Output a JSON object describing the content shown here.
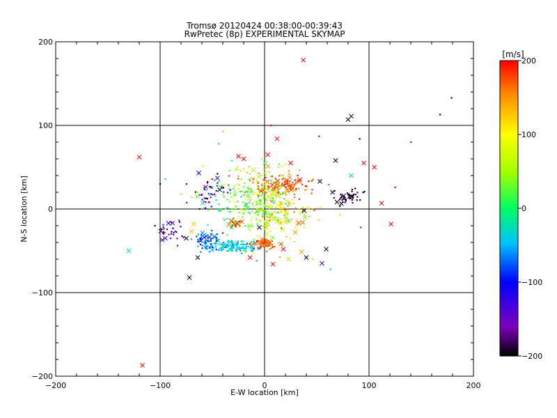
{
  "chart_data": {
    "type": "scatter",
    "title": "Tromsø 20120424 00:38:00-00:39:43",
    "subtitle": "RwPretec (8p) EXPERIMENTAL SKYMAP",
    "xlabel": "E-W location [km]",
    "ylabel": "N-S location [km]",
    "xlim": [
      -200,
      200
    ],
    "ylim": [
      -200,
      200
    ],
    "x_ticks": [
      -200,
      -100,
      0,
      100,
      200
    ],
    "y_ticks": [
      -200,
      -100,
      0,
      100,
      200
    ],
    "x_tick_labels": [
      "−200",
      "−100",
      "0",
      "100",
      "200"
    ],
    "y_tick_labels": [
      "−200",
      "−100",
      "0",
      "100",
      "200"
    ],
    "grid": true,
    "colorbar": {
      "label": "[m/s]",
      "range": [
        -200,
        200
      ],
      "ticks": [
        200,
        100,
        0,
        -100,
        -200
      ],
      "tick_labels": [
        "200",
        "100",
        "0",
        "−100",
        "−200"
      ],
      "colors": [
        "#000000",
        "#7f00bf",
        "#0000ff",
        "#00c0ff",
        "#00ff60",
        "#a0ff00",
        "#ffff00",
        "#ff9000",
        "#ff0000"
      ]
    },
    "marker_types": [
      "dot",
      "cross"
    ],
    "clusters": [
      {
        "cx": 15,
        "cy": 28,
        "sx": 14,
        "sy": 5,
        "n": 120,
        "vmin": 150,
        "vmax": 200
      },
      {
        "cx": -30,
        "cy": -45,
        "sx": 14,
        "sy": 4,
        "n": 130,
        "vmin": -60,
        "vmax": -20
      },
      {
        "cx": -55,
        "cy": -37,
        "sx": 8,
        "sy": 6,
        "n": 60,
        "vmin": -100,
        "vmax": -50
      },
      {
        "cx": 0,
        "cy": 0,
        "sx": 14,
        "sy": 22,
        "n": 190,
        "vmin": 20,
        "vmax": 120
      },
      {
        "cx": 0,
        "cy": -42,
        "sx": 6,
        "sy": 3,
        "n": 60,
        "vmin": 140,
        "vmax": 200
      },
      {
        "cx": -28,
        "cy": -17,
        "sx": 3,
        "sy": 3,
        "n": 25,
        "vmin": 160,
        "vmax": 200
      },
      {
        "cx": 78,
        "cy": 14,
        "sx": 7,
        "sy": 5,
        "n": 50,
        "vmin": -200,
        "vmax": -180
      },
      {
        "cx": -55,
        "cy": 20,
        "sx": 8,
        "sy": 10,
        "n": 45,
        "vmin": -200,
        "vmax": -100
      },
      {
        "cx": -90,
        "cy": -25,
        "sx": 6,
        "sy": 6,
        "n": 30,
        "vmin": -200,
        "vmax": -120
      },
      {
        "cx": -15,
        "cy": 10,
        "sx": 22,
        "sy": 18,
        "n": 130,
        "vmin": -20,
        "vmax": 60
      },
      {
        "cx": 20,
        "cy": -5,
        "sx": 15,
        "sy": 15,
        "n": 60,
        "vmin": 100,
        "vmax": 180
      },
      {
        "cx": -10,
        "cy": 40,
        "sx": 20,
        "sy": 10,
        "n": 40,
        "vmin": 0,
        "vmax": 200
      }
    ],
    "points": [
      {
        "x": 37,
        "y": 178,
        "v": 200,
        "m": "cross"
      },
      {
        "x": -120,
        "y": 62,
        "v": 195,
        "m": "cross"
      },
      {
        "x": -117,
        "y": -187,
        "v": 200,
        "m": "cross"
      },
      {
        "x": -130,
        "y": -50,
        "v": -40,
        "m": "cross"
      },
      {
        "x": -72,
        "y": -82,
        "v": -200,
        "m": "cross"
      },
      {
        "x": 80,
        "y": 107,
        "v": -200,
        "m": "cross"
      },
      {
        "x": 83,
        "y": 111,
        "v": -200,
        "m": "cross"
      },
      {
        "x": 168,
        "y": 113,
        "v": -200,
        "m": "dot"
      },
      {
        "x": 179,
        "y": 133,
        "v": -200,
        "m": "dot"
      },
      {
        "x": 12,
        "y": 84,
        "v": 200,
        "m": "cross"
      },
      {
        "x": 95,
        "y": 55,
        "v": 200,
        "m": "cross"
      },
      {
        "x": 105,
        "y": 50,
        "v": 200,
        "m": "cross"
      },
      {
        "x": 112,
        "y": 7,
        "v": 200,
        "m": "cross"
      },
      {
        "x": 121,
        "y": -18,
        "v": 200,
        "m": "cross"
      },
      {
        "x": 140,
        "y": 80,
        "v": 200,
        "m": "dot"
      },
      {
        "x": 125,
        "y": 26,
        "v": 200,
        "m": "dot"
      },
      {
        "x": 68,
        "y": 58,
        "v": -200,
        "m": "cross"
      },
      {
        "x": 52,
        "y": 87,
        "v": 200,
        "m": "dot"
      },
      {
        "x": 91,
        "y": 84,
        "v": -200,
        "m": "dot"
      },
      {
        "x": 83,
        "y": 40,
        "v": -40,
        "m": "cross"
      },
      {
        "x": 92,
        "y": -22,
        "v": 200,
        "m": "dot"
      },
      {
        "x": -63,
        "y": 43,
        "v": -100,
        "m": "cross"
      },
      {
        "x": -64,
        "y": -58,
        "v": -200,
        "m": "cross"
      },
      {
        "x": -43,
        "y": 23,
        "v": -200,
        "m": "cross"
      },
      {
        "x": 40,
        "y": -58,
        "v": -200,
        "m": "cross"
      },
      {
        "x": 55,
        "y": -65,
        "v": -130,
        "m": "cross"
      },
      {
        "x": 59,
        "y": -48,
        "v": -200,
        "m": "cross"
      },
      {
        "x": 8,
        "y": -66,
        "v": 200,
        "m": "cross"
      },
      {
        "x": 23,
        "y": -60,
        "v": 120,
        "m": "cross"
      },
      {
        "x": -14,
        "y": -58,
        "v": 200,
        "m": "cross"
      },
      {
        "x": 63,
        "y": -72,
        "v": -40,
        "m": "dot"
      },
      {
        "x": 46,
        "y": -60,
        "v": 60,
        "m": "dot"
      },
      {
        "x": -75,
        "y": -35,
        "v": -200,
        "m": "cross"
      },
      {
        "x": -95,
        "y": -35,
        "v": -130,
        "m": "cross"
      },
      {
        "x": -92,
        "y": -17,
        "v": -100,
        "m": "cross"
      },
      {
        "x": -70,
        "y": -27,
        "v": 130,
        "m": "cross"
      },
      {
        "x": -68,
        "y": -18,
        "v": 130,
        "m": "cross"
      },
      {
        "x": -5,
        "y": -22,
        "v": -200,
        "m": "cross"
      },
      {
        "x": 18,
        "y": -48,
        "v": 200,
        "m": "cross"
      },
      {
        "x": 3,
        "y": 65,
        "v": 200,
        "m": "cross"
      },
      {
        "x": -25,
        "y": 63,
        "v": 200,
        "m": "cross"
      },
      {
        "x": -20,
        "y": 60,
        "v": 200,
        "m": "cross"
      },
      {
        "x": 25,
        "y": 55,
        "v": 200,
        "m": "cross"
      },
      {
        "x": 38,
        "y": -2,
        "v": -200,
        "m": "cross"
      },
      {
        "x": 53,
        "y": 33,
        "v": -200,
        "m": "cross"
      },
      {
        "x": 65,
        "y": 20,
        "v": -200,
        "m": "cross"
      },
      {
        "x": -105,
        "y": -20,
        "v": -200,
        "m": "dot"
      },
      {
        "x": -100,
        "y": 30,
        "v": -200,
        "m": "dot"
      },
      {
        "x": -95,
        "y": 36,
        "v": 0,
        "m": "dot"
      },
      {
        "x": -40,
        "y": 93,
        "v": 40,
        "m": "dot"
      },
      {
        "x": -44,
        "y": 78,
        "v": -30,
        "m": "dot"
      },
      {
        "x": 6,
        "y": 100,
        "v": 200,
        "m": "dot"
      }
    ]
  }
}
